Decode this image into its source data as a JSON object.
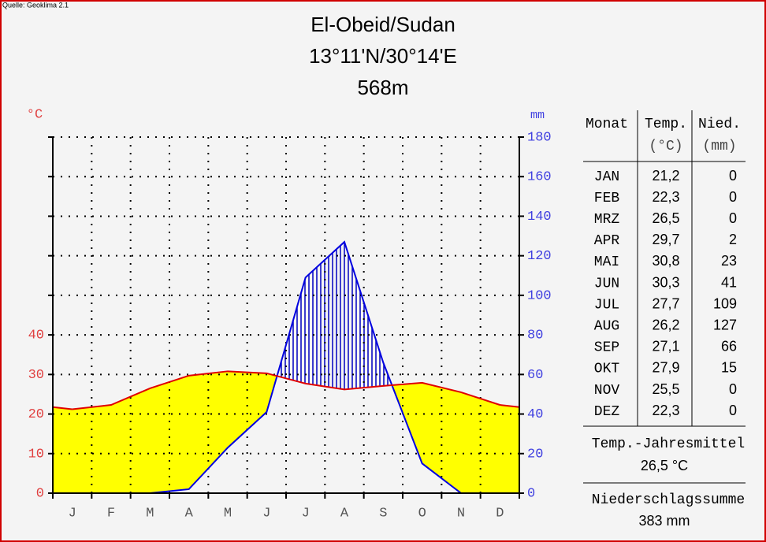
{
  "source": "Quelle: Geoklima 2.1",
  "chart_data": {
    "type": "climate",
    "title": "El-Obeid/Sudan",
    "subtitle": [
      "13°11'N/30°14'E",
      "568m"
    ],
    "ylabel": "°C",
    "y2label": "mm",
    "categories": [
      "J",
      "F",
      "M",
      "A",
      "M",
      "J",
      "J",
      "A",
      "S",
      "O",
      "N",
      "D"
    ],
    "series": [
      {
        "name": "Temp.",
        "color": "#e00000",
        "values": [
          21.2,
          22.3,
          26.5,
          29.7,
          30.8,
          30.3,
          27.7,
          26.2,
          27.1,
          27.9,
          25.5,
          22.3
        ],
        "value_labels": [
          "21,2",
          "22,3",
          "26,5",
          "29,7",
          "30,8",
          "30,3",
          "27,7",
          "26,2",
          "27,1",
          "27,9",
          "25,5",
          "22,3"
        ]
      },
      {
        "name": "Nied.",
        "color": "#0000e0",
        "axis": "y2",
        "values": [
          0,
          0,
          0,
          2,
          23,
          41,
          109,
          127,
          66,
          15,
          0,
          0
        ]
      }
    ],
    "ylim": [
      0,
      90
    ],
    "yticks": [
      0,
      10,
      20,
      30,
      40
    ],
    "y2lim": [
      0,
      180
    ],
    "y2ticks": [
      0,
      20,
      40,
      60,
      80,
      100,
      120,
      140,
      160,
      180
    ],
    "arid_color": "#ffff00",
    "humid_color": "#0000c0",
    "grid": true
  },
  "table": {
    "headers": [
      "Monat",
      "Temp.",
      "(°C)",
      "Nied.",
      "(mm)"
    ],
    "months": [
      "JAN",
      "FEB",
      "MRZ",
      "APR",
      "MAI",
      "JUN",
      "JUL",
      "AUG",
      "SEP",
      "OKT",
      "NOV",
      "DEZ"
    ],
    "annual_temp_label": "Temp.-Jahresmittel",
    "annual_temp": "26,5 °C",
    "annual_precip_label": "Niederschlagssumme",
    "annual_precip": "383 mm"
  }
}
